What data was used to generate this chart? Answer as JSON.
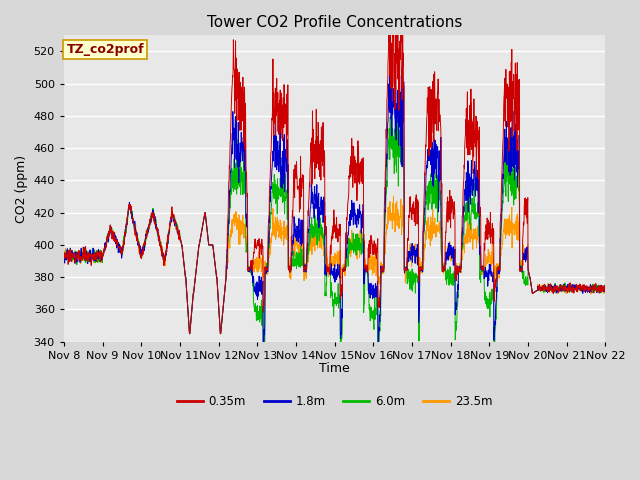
{
  "title": "Tower CO2 Profile Concentrations",
  "xlabel": "Time",
  "ylabel": "CO2 (ppm)",
  "ylim": [
    340,
    530
  ],
  "yticks": [
    340,
    360,
    380,
    400,
    420,
    440,
    460,
    480,
    500,
    520
  ],
  "series_colors": [
    "#cc0000",
    "#0000cc",
    "#00bb00",
    "#ff9900"
  ],
  "series_labels": [
    "0.35m",
    "1.8m",
    "6.0m",
    "23.5m"
  ],
  "legend_label": "TZ_co2prof",
  "legend_label_color": "#880000",
  "legend_label_bg": "#ffffcc",
  "background_color": "#e8e8e8",
  "plot_bg_color": "#e8e8e8",
  "xtick_labels": [
    "Nov 8",
    "Nov 9",
    "Nov 10",
    "Nov 11",
    "Nov 12",
    "Nov 13",
    "Nov 14",
    "Nov 15",
    "Nov 16",
    "Nov 17",
    "Nov 18",
    "Nov 19",
    "Nov 20",
    "Nov 21",
    "Nov 22"
  ],
  "title_fontsize": 11,
  "axis_label_fontsize": 9,
  "tick_fontsize": 8
}
